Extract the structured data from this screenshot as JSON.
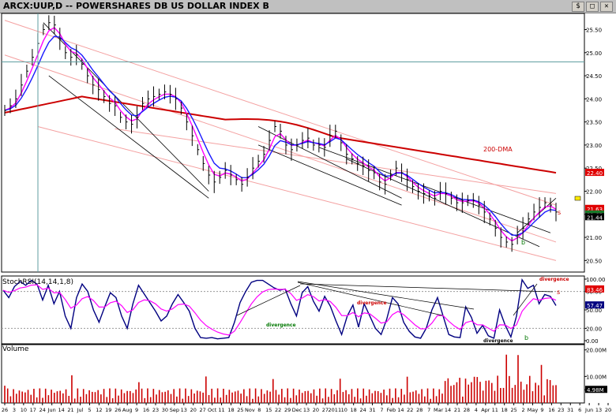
{
  "title": "ARCX:UUP,D -- POWERSHARES DB US DOLLAR INDEX B",
  "window_buttons": [
    "$",
    "□",
    "✕"
  ],
  "stoch_label": "StochRSI(14,14,1,8)",
  "volume_label": "Volume",
  "colors": {
    "price_bar": "#000000",
    "ema_fast": "#ff00ff",
    "ema_slow": "#1a1aff",
    "dma200": "#cc0000",
    "channel_outer": "#f4a0a0",
    "channel_inner": "#000000",
    "stoch_line": "#000080",
    "stoch_signal": "#ff00ff",
    "volume_bar": "#cc0000",
    "cursor": "#5f9ea0",
    "annotation_red": "#cc0000",
    "annotation_green": "#007700"
  },
  "chart_data": [
    {
      "type": "line",
      "panel": "price",
      "series": [
        {
          "values": [
            23.75,
            23.85,
            24.0,
            24.3,
            24.6,
            24.9,
            25.2,
            25.5,
            25.65,
            25.6,
            25.3,
            25.0,
            24.9,
            24.95,
            24.75,
            24.5,
            24.3,
            24.2,
            24.05,
            23.9,
            23.85,
            23.6,
            23.5,
            23.45,
            23.6,
            23.9,
            24.0,
            24.05,
            24.1,
            24.15,
            24.1,
            24.0,
            23.8,
            23.5,
            23.2,
            22.9,
            22.6,
            22.35,
            22.2,
            22.3,
            22.45,
            22.35,
            22.25,
            22.15,
            22.3,
            22.5,
            22.65,
            22.8,
            23.1,
            23.4,
            23.3,
            23.0,
            22.9,
            23.0,
            23.1,
            23.15,
            23.0,
            23.0,
            22.95,
            23.2,
            23.3,
            23.05,
            22.8,
            22.7,
            22.6,
            22.55,
            22.45,
            22.4,
            22.2,
            22.15,
            22.35,
            22.5,
            22.4,
            22.25,
            22.1,
            22.0,
            21.95,
            21.9,
            21.85,
            22.0,
            21.95,
            21.85,
            21.75,
            21.75,
            21.8,
            21.8,
            21.7,
            21.55,
            21.4,
            21.2,
            21.0,
            20.9,
            20.85,
            21.05,
            21.2,
            21.4,
            21.55,
            21.65,
            21.75,
            21.7,
            21.55
          ]
        }
      ],
      "x_ticks": [
        "26",
        "3",
        "10",
        "17",
        "24",
        "Jun",
        "14",
        "21",
        "Jul",
        "5",
        "12",
        "19",
        "26",
        "Aug",
        "9",
        "16",
        "23",
        "30",
        "Sep",
        "13",
        "20",
        "27",
        "Oct",
        "11",
        "18",
        "25",
        "Nov",
        "8",
        "15",
        "22",
        "29",
        "Dec",
        "13",
        "20",
        "27",
        "2011",
        "10",
        "18",
        "24",
        "31",
        "7",
        "Feb",
        "14",
        "22",
        "28",
        "7",
        "Mar",
        "14",
        "21",
        "28",
        "4",
        "Apr",
        "11",
        "18",
        "25",
        "2",
        "May",
        "9",
        "16",
        "23",
        "31",
        "6",
        "Jun",
        "13",
        "20"
      ],
      "y_ticks": [
        25.5,
        25.0,
        24.5,
        24.0,
        23.5,
        23.0,
        22.5,
        22.0,
        21.5,
        21.0,
        20.5
      ],
      "ylim": [
        20.25,
        25.85
      ],
      "price_tags": [
        "22.40",
        "21.63",
        "21.65",
        "21.44"
      ],
      "annotations": [
        "200-DMA",
        "s",
        "b"
      ]
    },
    {
      "type": "line",
      "panel": "stochrsi",
      "series": [
        {
          "values": [
            82,
            70,
            88,
            96,
            90,
            98,
            92,
            66,
            90,
            60,
            80,
            40,
            20,
            70,
            92,
            80,
            50,
            30,
            55,
            78,
            70,
            40,
            20,
            60,
            90,
            76,
            62,
            48,
            32,
            40,
            60,
            75,
            62,
            48,
            20,
            5,
            4,
            5,
            3,
            4,
            5,
            30,
            62,
            80,
            95,
            98,
            98,
            92,
            86,
            82,
            84,
            60,
            40,
            78,
            88,
            64,
            48,
            72,
            56,
            32,
            10,
            40,
            58,
            22,
            60,
            40,
            20,
            10,
            35,
            70,
            60,
            30,
            15,
            6,
            4,
            20,
            50,
            70,
            40,
            10,
            6,
            5,
            55,
            38,
            12,
            25,
            8,
            4,
            50,
            25,
            6,
            40,
            99,
            85,
            90,
            60,
            75,
            72,
            57
          ]
        }
      ],
      "y_ticks": [
        "100.00",
        "80.00",
        "50.00",
        "20.00",
        "0.00"
      ],
      "tags": [
        "83.46",
        "57.47"
      ],
      "annotations": [
        "divergence",
        "divergence",
        "divergence",
        "divergence",
        "s",
        "b"
      ]
    },
    {
      "type": "bar",
      "panel": "volume",
      "y_ticks": [
        "20.00M",
        "10.00M",
        "4.98M"
      ],
      "tags": [
        "4.98M"
      ]
    }
  ]
}
